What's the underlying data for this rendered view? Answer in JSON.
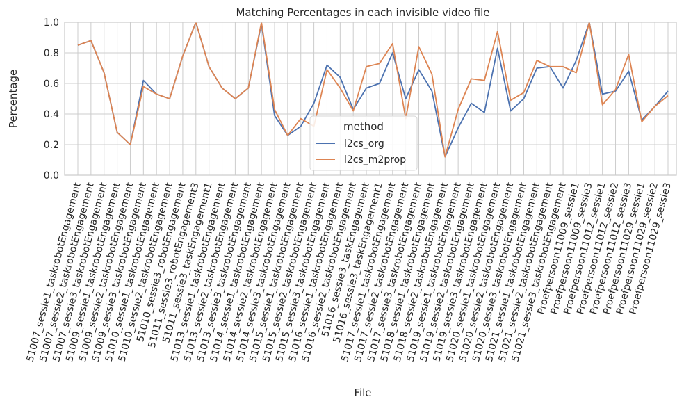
{
  "chart_data": {
    "type": "line",
    "title": "Matching Percentages in each invisible video file",
    "x_label": "File",
    "y_label": "Percentage",
    "legend_title": "method",
    "legend_position": "lower center",
    "grid": true,
    "ylim": [
      0,
      1
    ],
    "yticks": [
      {
        "value": 0,
        "label": "0.0"
      },
      0.2,
      0.4,
      0.6,
      0.8,
      {
        "value": 1,
        "label": "1.0"
      }
    ],
    "categories": [
      "51007_sessie1_taskrobotEngagement",
      "51007_sessie2_taskrobotEngagement",
      "51007_sessie3_taskrobotEngagement",
      "51009_sessie1_taskrobotEngagement",
      "51009_sessie2_taskrobotEngagement",
      "51009_sessie3_taskrobotEngagement",
      "51010_sessie1_taskrobotEngagement",
      "51010_sessie2_taskrobotEngagement",
      "51010_sessie3_robotEngagement",
      "51011_sessie3_robotEngagement3",
      "51011_sessie3_taskEngagement1",
      "51013_sessie1_taskrobotEngagement",
      "51013_sessie2_taskrobotEngagement",
      "51013_sessie3_taskrobotEngagement",
      "51014_sessie1_taskrobotEngagement",
      "51014_sessie2_taskrobotEngagement",
      "51014_sessie3_taskrobotEngagement",
      "51015_sessie1_taskrobotEngagement",
      "51015_sessie2_taskrobotEngagement",
      "51015_sessie3_taskrobotEngagement",
      "51016_sessie1_taskrobotEngagement",
      "51016_sessie2_taskrobotEngagement",
      "51016_sessie3_taskEngagement",
      "51016_sessie3_taskEngagement1",
      "51017_sessie1_taskrobotEngagement",
      "51017_sessie2_taskrobotEngagement",
      "51017_sessie3_taskrobotEngagement",
      "51018_sessie1_taskrobotEngagement",
      "51018_sessie2_taskrobotEngagement",
      "51019_sessie1_taskrobotEngagement",
      "51019_sessie2_taskrobotEngagement",
      "51019_sessie3_taskrobotEngagement",
      "51020_sessie1_taskrobotEngagement",
      "51020_sessie2_taskrobotEngagement",
      "51020_sessie3_taskrobotEngagement",
      "51021_sessie1_taskrobotEngagement",
      "51021_sessie2_taskrobotEngagement",
      "51021_sessie3_taskrobotEngagement",
      "Proefpersoon11009_sessie1",
      "Proefpersoon11009_sessie3",
      "Proefpersoon11012_sessie1",
      "Proefpersoon11012_sessie2",
      "Proefpersoon11012_sessie3",
      "Proefpersoon11029_sessie1",
      "Proefpersoon11029_sessie2",
      "Proefpersoon11029_sessie3"
    ],
    "series": [
      {
        "name": "l2cs_org",
        "color": "#4c72b0",
        "values": [
          0.85,
          0.88,
          0.67,
          0.28,
          0.2,
          0.62,
          0.53,
          0.5,
          0.78,
          1.0,
          0.71,
          0.57,
          0.5,
          0.57,
          0.99,
          0.39,
          0.26,
          0.32,
          0.47,
          0.72,
          0.64,
          0.43,
          0.57,
          0.6,
          0.8,
          0.5,
          0.69,
          0.55,
          0.12,
          0.31,
          0.47,
          0.41,
          0.83,
          0.42,
          0.5,
          0.7,
          0.71,
          0.57,
          0.75,
          1.0,
          0.53,
          0.55,
          0.68,
          0.36,
          0.45,
          0.55
        ]
      },
      {
        "name": "l2cs_m2prop",
        "color": "#dd8452",
        "values": [
          0.85,
          0.88,
          0.67,
          0.28,
          0.2,
          0.58,
          0.53,
          0.5,
          0.78,
          1.0,
          0.71,
          0.57,
          0.5,
          0.57,
          1.0,
          0.43,
          0.26,
          0.37,
          0.32,
          0.69,
          0.57,
          0.42,
          0.71,
          0.73,
          0.86,
          0.37,
          0.84,
          0.66,
          0.12,
          0.43,
          0.63,
          0.62,
          0.94,
          0.49,
          0.54,
          0.75,
          0.71,
          0.71,
          0.67,
          1.0,
          0.46,
          0.56,
          0.79,
          0.35,
          0.45,
          0.52
        ]
      }
    ]
  }
}
